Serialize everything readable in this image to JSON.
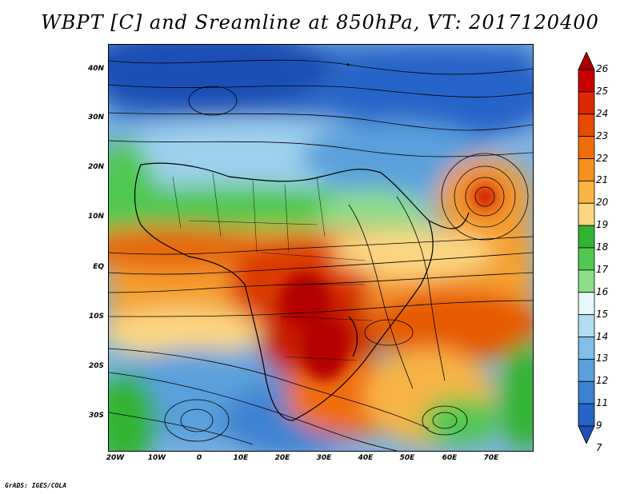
{
  "title": "WBPT [C] and Sreamline at 850hPa, VT: 2017120400",
  "lat_labels": [
    "40N",
    "30N",
    "20N",
    "10N",
    "EQ",
    "10S",
    "20S",
    "30S"
  ],
  "lon_labels": [
    "20W",
    "10W",
    "0",
    "10E",
    "20E",
    "30E",
    "40E",
    "50E",
    "60E",
    "70E"
  ],
  "colorbar": {
    "labels": [
      "26",
      "25",
      "24",
      "23",
      "22",
      "21",
      "20",
      "19",
      "18",
      "17",
      "16",
      "15",
      "14",
      "13",
      "12",
      "11",
      "9",
      "7"
    ],
    "colors": [
      "#a50000",
      "#c80000",
      "#dc2800",
      "#e64b00",
      "#f06e0a",
      "#f5911e",
      "#f8b446",
      "#fbd782",
      "#32b432",
      "#50c850",
      "#8cdc8c",
      "#e6f8f8",
      "#b4dcf0",
      "#82bee6",
      "#5aa0dc",
      "#3c82d2",
      "#2864c8",
      "#1e50b4"
    ]
  },
  "footer": "GrADS: IGES/COLA"
}
